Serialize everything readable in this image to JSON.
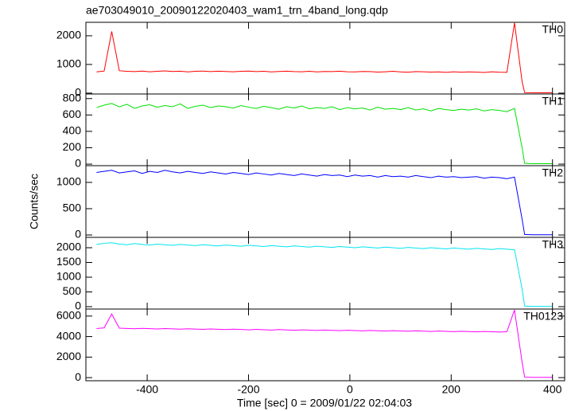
{
  "chart_data": {
    "type": "line",
    "title": "ae703049010_20090122020403_wam1_trn_4band_long.qdp",
    "xlabel": "Time [sec] 0 = 2009/01/22 02:04:03",
    "ylabel": "Counts/sec",
    "x": [
      -500,
      -485,
      -470,
      -455,
      -440,
      -425,
      -410,
      -395,
      -380,
      -365,
      -350,
      -335,
      -320,
      -305,
      -290,
      -275,
      -260,
      -245,
      -230,
      -215,
      -200,
      -185,
      -170,
      -155,
      -140,
      -125,
      -110,
      -95,
      -80,
      -65,
      -50,
      -35,
      -20,
      -5,
      10,
      25,
      40,
      55,
      70,
      85,
      100,
      115,
      130,
      145,
      160,
      175,
      190,
      205,
      220,
      235,
      250,
      265,
      280,
      295,
      310,
      325,
      340,
      345,
      360,
      380,
      400
    ],
    "xlim": [
      -521,
      424
    ],
    "xticks": [
      -400,
      -200,
      0,
      200,
      400
    ],
    "series": [
      {
        "name": "TH0",
        "color": "#ff0000",
        "ylim": [
          -30,
          2470
        ],
        "yticks": [
          0,
          1000,
          2000
        ],
        "values": [
          740,
          770,
          2150,
          780,
          760,
          750,
          770,
          745,
          760,
          775,
          755,
          765,
          740,
          760,
          770,
          750,
          765,
          755,
          745,
          760,
          770,
          750,
          760,
          740,
          755,
          765,
          750,
          745,
          760,
          740,
          755,
          750,
          765,
          745,
          740,
          755,
          750,
          735,
          745,
          760,
          740,
          730,
          750,
          745,
          735,
          740,
          725,
          745,
          730,
          740,
          735,
          720,
          745,
          730,
          725,
          2450,
          400,
          20,
          15,
          10,
          10
        ]
      },
      {
        "name": "TH1",
        "color": "#00e000",
        "ylim": [
          -19,
          856
        ],
        "yticks": [
          0,
          200,
          400,
          600,
          800
        ],
        "values": [
          690,
          720,
          740,
          700,
          730,
          680,
          710,
          725,
          695,
          715,
          700,
          735,
          680,
          705,
          720,
          690,
          710,
          700,
          685,
          715,
          695,
          680,
          705,
          690,
          670,
          700,
          685,
          710,
          675,
          690,
          680,
          700,
          665,
          690,
          675,
          685,
          660,
          695,
          670,
          680,
          665,
          690,
          660,
          675,
          650,
          680,
          665,
          655,
          670,
          660,
          675,
          650,
          665,
          655,
          640,
          680,
          200,
          10,
          5,
          5,
          5
        ]
      },
      {
        "name": "TH2",
        "color": "#0000ff",
        "ylim": [
          -45,
          1318
        ],
        "yticks": [
          0,
          500,
          1000
        ],
        "values": [
          1190,
          1210,
          1230,
          1180,
          1200,
          1220,
          1170,
          1210,
          1190,
          1230,
          1200,
          1180,
          1210,
          1190,
          1170,
          1200,
          1180,
          1160,
          1190,
          1170,
          1150,
          1180,
          1160,
          1140,
          1170,
          1150,
          1130,
          1160,
          1140,
          1120,
          1150,
          1130,
          1140,
          1110,
          1140,
          1120,
          1130,
          1100,
          1130,
          1110,
          1120,
          1100,
          1130,
          1110,
          1090,
          1120,
          1100,
          1110,
          1090,
          1100,
          1110,
          1080,
          1100,
          1090,
          1070,
          1100,
          300,
          10,
          5,
          5,
          5
        ]
      },
      {
        "name": "TH3",
        "color": "#00e5f0",
        "ylim": [
          -81,
          2351
        ],
        "yticks": [
          0,
          500,
          1000,
          1500,
          2000
        ],
        "values": [
          2110,
          2150,
          2170,
          2120,
          2100,
          2140,
          2110,
          2090,
          2120,
          2100,
          2080,
          2110,
          2090,
          2070,
          2100,
          2080,
          2060,
          2090,
          2070,
          2050,
          2080,
          2060,
          2040,
          2070,
          2050,
          2030,
          2060,
          2040,
          2020,
          2050,
          2030,
          2010,
          2040,
          2020,
          2000,
          2030,
          2010,
          1990,
          2020,
          2000,
          1980,
          2010,
          1990,
          1970,
          2000,
          1980,
          1960,
          1990,
          1970,
          1950,
          1980,
          1960,
          1940,
          1970,
          1950,
          1930,
          600,
          20,
          10,
          10,
          10
        ]
      },
      {
        "name": "TH0123",
        "color": "#ff00ff",
        "ylim": [
          -304,
          6684
        ],
        "yticks": [
          0,
          2000,
          4000,
          6000
        ],
        "values": [
          4780,
          4850,
          6200,
          4820,
          4790,
          4760,
          4800,
          4770,
          4740,
          4780,
          4750,
          4720,
          4760,
          4730,
          4700,
          4740,
          4710,
          4680,
          4720,
          4690,
          4660,
          4700,
          4670,
          4640,
          4680,
          4650,
          4620,
          4660,
          4630,
          4600,
          4640,
          4610,
          4580,
          4620,
          4590,
          4560,
          4600,
          4570,
          4540,
          4580,
          4550,
          4520,
          4560,
          4530,
          4500,
          4540,
          4510,
          4480,
          4520,
          4490,
          4460,
          4500,
          4470,
          4440,
          4480,
          6600,
          1500,
          50,
          30,
          30,
          30
        ]
      }
    ]
  }
}
